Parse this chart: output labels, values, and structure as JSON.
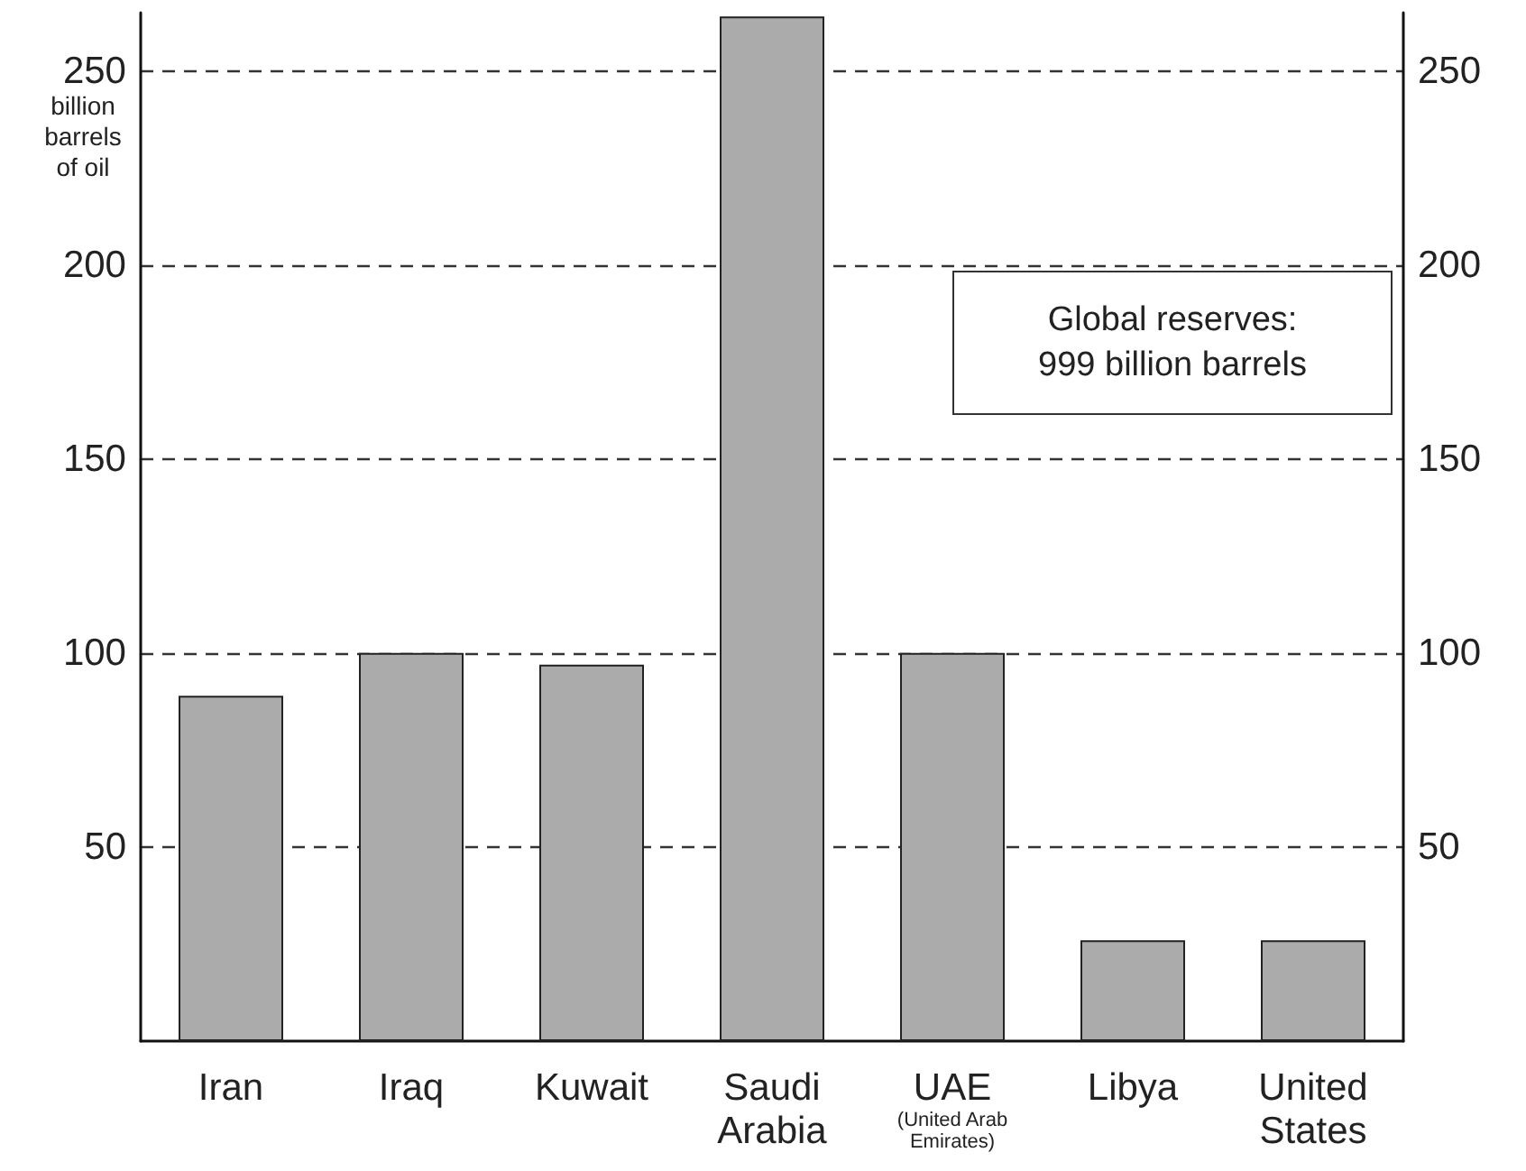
{
  "chart_data": {
    "type": "bar",
    "categories": [
      "Iran",
      "Iraq",
      "Kuwait",
      "Saudi\nArabia",
      "UAE\n(United Arab\nEmirates)",
      "Libya",
      "United\nStates"
    ],
    "values": [
      89,
      100,
      97,
      264,
      100,
      26,
      26
    ],
    "color": "#ababab",
    "ylabel": "billion\nbarrels\nof oil",
    "ylim": [
      0,
      265
    ],
    "yticks": [
      50,
      100,
      150,
      200,
      250
    ],
    "y2lim": [
      0,
      265
    ],
    "y2ticks": [
      50,
      100,
      150,
      200,
      250
    ],
    "grid": "y",
    "annotations": [
      "Global reserves:\n999 billion barrels"
    ]
  }
}
